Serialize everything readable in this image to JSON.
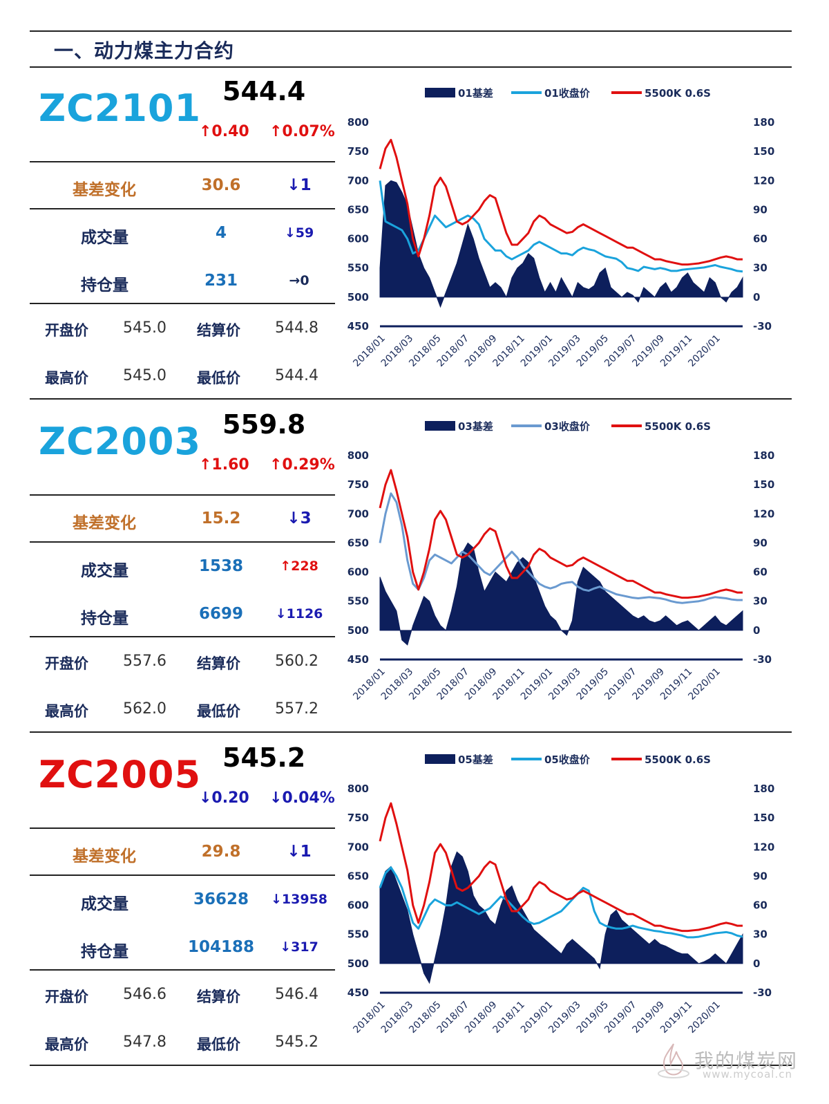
{
  "section_title": "一、动力煤主力合约",
  "colors": {
    "up": "#e01010",
    "down": "#1a1ab0",
    "brand_blue": "#1aa3dc",
    "brand_red": "#e01010",
    "navy": "#0d1f5c",
    "orange": "#c0702a",
    "value_blue": "#1a6fb8",
    "red_line": "#e01010"
  },
  "panels": [
    {
      "code": "ZC2101",
      "code_color": "#1aa3dc",
      "price": "544.4",
      "change": "↑0.40",
      "change_pct": "↑0.07%",
      "change_dir": "up",
      "basis_label": "基差变化",
      "basis_value": "30.6",
      "basis_delta": "↓1",
      "volume_label": "成交量",
      "volume_value": "4",
      "volume_delta": "↓59",
      "volume_dir": "down",
      "oi_label": "持仓量",
      "oi_value": "231",
      "oi_delta": "→0",
      "oi_dir": "flat",
      "open_label": "开盘价",
      "open_value": "545.0",
      "settle_label": "结算价",
      "settle_value": "544.8",
      "high_label": "最高价",
      "high_value": "545.0",
      "low_label": "最低价",
      "low_value": "544.4"
    },
    {
      "code": "ZC2003",
      "code_color": "#1aa3dc",
      "price": "559.8",
      "change": "↑1.60",
      "change_pct": "↑0.29%",
      "change_dir": "up",
      "basis_label": "基差变化",
      "basis_value": "15.2",
      "basis_delta": "↓3",
      "volume_label": "成交量",
      "volume_value": "1538",
      "volume_delta": "↑228",
      "volume_dir": "up",
      "oi_label": "持仓量",
      "oi_value": "6699",
      "oi_delta": "↓1126",
      "oi_dir": "down",
      "open_label": "开盘价",
      "open_value": "557.6",
      "settle_label": "结算价",
      "settle_value": "560.2",
      "high_label": "最高价",
      "high_value": "562.0",
      "low_label": "最低价",
      "low_value": "557.2"
    },
    {
      "code": "ZC2005",
      "code_color": "#e01010",
      "price": "545.2",
      "change": "↓0.20",
      "change_pct": "↓0.04%",
      "change_dir": "down",
      "basis_label": "基差变化",
      "basis_value": "29.8",
      "basis_delta": "↓1",
      "volume_label": "成交量",
      "volume_value": "36628",
      "volume_delta": "↓13958",
      "volume_dir": "down",
      "oi_label": "持仓量",
      "oi_value": "104188",
      "oi_delta": "↓317",
      "oi_dir": "down",
      "open_label": "开盘价",
      "open_value": "546.6",
      "settle_label": "结算价",
      "settle_value": "546.4",
      "high_label": "最高价",
      "high_value": "547.8",
      "low_label": "最低价",
      "low_value": "545.2"
    }
  ],
  "chart_data": [
    {
      "type": "line",
      "legend": [
        "01基差",
        "01收盘价",
        "5500K 0.6S"
      ],
      "legend_position": "top",
      "x_ticks": [
        "2018/01",
        "2018/03",
        "2018/05",
        "2018/07",
        "2018/09",
        "2018/11",
        "2019/01",
        "2019/03",
        "2019/05",
        "2019/07",
        "2019/09",
        "2019/11",
        "2020/01"
      ],
      "ylim_left": [
        450,
        800
      ],
      "yticks_left": [
        "800",
        "750",
        "700",
        "650",
        "600",
        "550",
        "500",
        "450"
      ],
      "ylim_right": [
        -30,
        180
      ],
      "yticks_right": [
        "180",
        "150",
        "120",
        "90",
        "60",
        "30",
        "0",
        "-30"
      ],
      "grid": false,
      "series": [
        {
          "name": "01基差",
          "axis": "right",
          "kind": "area",
          "color": "#0d1f5c",
          "values": [
            30,
            115,
            120,
            118,
            108,
            95,
            70,
            45,
            30,
            20,
            5,
            -10,
            5,
            20,
            35,
            55,
            75,
            60,
            40,
            25,
            10,
            15,
            10,
            0,
            20,
            30,
            35,
            45,
            40,
            20,
            5,
            15,
            5,
            20,
            10,
            0,
            15,
            10,
            8,
            12,
            25,
            30,
            10,
            5,
            0,
            5,
            2,
            -5,
            10,
            5,
            0,
            10,
            15,
            5,
            10,
            20,
            25,
            15,
            10,
            5,
            20,
            15,
            0,
            -5,
            5,
            10,
            20
          ]
        },
        {
          "name": "01收盘价",
          "axis": "left",
          "kind": "line",
          "color": "#1aa3dc",
          "values": [
            700,
            630,
            625,
            620,
            615,
            600,
            575,
            580,
            600,
            620,
            640,
            630,
            620,
            625,
            630,
            635,
            640,
            635,
            625,
            600,
            590,
            580,
            580,
            570,
            565,
            570,
            575,
            580,
            590,
            595,
            590,
            585,
            580,
            575,
            575,
            572,
            580,
            585,
            582,
            580,
            575,
            570,
            568,
            566,
            560,
            550,
            548,
            545,
            552,
            550,
            548,
            550,
            548,
            545,
            545,
            547,
            548,
            549,
            550,
            551,
            553,
            555,
            552,
            550,
            548,
            545,
            544
          ]
        },
        {
          "name": "5500K 0.6S",
          "axis": "left",
          "kind": "line",
          "color": "#e01010",
          "values": [
            720,
            755,
            770,
            740,
            700,
            660,
            600,
            570,
            600,
            640,
            690,
            705,
            690,
            660,
            630,
            625,
            630,
            640,
            650,
            665,
            675,
            670,
            640,
            610,
            590,
            590,
            600,
            610,
            630,
            640,
            635,
            625,
            620,
            615,
            610,
            612,
            620,
            625,
            620,
            615,
            610,
            605,
            600,
            595,
            590,
            585,
            585,
            580,
            575,
            570,
            565,
            565,
            562,
            560,
            558,
            556,
            556,
            557,
            558,
            560,
            562,
            565,
            568,
            570,
            568,
            565,
            565
          ]
        }
      ]
    },
    {
      "type": "line",
      "legend": [
        "03基差",
        "03收盘价",
        "5500K 0.6S"
      ],
      "legend_position": "top",
      "x_ticks": [
        "2018/01",
        "2018/03",
        "2018/05",
        "2018/07",
        "2018/09",
        "2018/11",
        "2019/01",
        "2019/03",
        "2019/05",
        "2019/07",
        "2019/09",
        "2019/11",
        "2020/01"
      ],
      "ylim_left": [
        450,
        800
      ],
      "yticks_left": [
        "800",
        "750",
        "700",
        "650",
        "600",
        "550",
        "500",
        "450"
      ],
      "ylim_right": [
        -30,
        180
      ],
      "yticks_right": [
        "180",
        "150",
        "120",
        "90",
        "60",
        "30",
        "0",
        "-30"
      ],
      "grid": false,
      "series": [
        {
          "name": "03基差",
          "axis": "right",
          "kind": "area",
          "color": "#0d1f5c",
          "values": [
            55,
            40,
            30,
            20,
            -10,
            -15,
            5,
            20,
            35,
            30,
            15,
            5,
            0,
            20,
            45,
            80,
            90,
            85,
            60,
            40,
            50,
            60,
            55,
            50,
            60,
            70,
            75,
            70,
            55,
            40,
            25,
            15,
            10,
            0,
            -5,
            10,
            50,
            65,
            60,
            55,
            50,
            40,
            35,
            30,
            25,
            20,
            15,
            12,
            15,
            10,
            8,
            10,
            15,
            10,
            5,
            8,
            10,
            5,
            0,
            5,
            10,
            15,
            8,
            5,
            10,
            15,
            20
          ]
        },
        {
          "name": "03收盘价",
          "axis": "left",
          "kind": "line",
          "color": "#6a9ad0",
          "values": [
            650,
            700,
            735,
            720,
            680,
            620,
            580,
            570,
            590,
            620,
            630,
            625,
            620,
            615,
            625,
            635,
            630,
            620,
            610,
            600,
            595,
            605,
            615,
            625,
            635,
            625,
            610,
            600,
            590,
            580,
            575,
            572,
            575,
            580,
            582,
            583,
            575,
            570,
            568,
            572,
            575,
            570,
            566,
            562,
            560,
            558,
            556,
            555,
            556,
            557,
            556,
            555,
            553,
            550,
            548,
            547,
            548,
            549,
            550,
            552,
            555,
            557,
            556,
            555,
            553,
            552,
            552
          ]
        },
        {
          "name": "5500K 0.6S",
          "axis": "left",
          "kind": "line",
          "color": "#e01010",
          "values": [
            710,
            750,
            775,
            740,
            700,
            660,
            600,
            570,
            600,
            640,
            690,
            705,
            690,
            660,
            630,
            625,
            630,
            640,
            650,
            665,
            675,
            670,
            640,
            610,
            590,
            590,
            600,
            610,
            630,
            640,
            635,
            625,
            620,
            615,
            610,
            612,
            620,
            625,
            620,
            615,
            610,
            605,
            600,
            595,
            590,
            585,
            585,
            580,
            575,
            570,
            565,
            565,
            562,
            560,
            558,
            556,
            556,
            557,
            558,
            560,
            562,
            565,
            568,
            570,
            568,
            565,
            565
          ]
        }
      ]
    },
    {
      "type": "line",
      "legend": [
        "05基差",
        "05收盘价",
        "5500K 0.6S"
      ],
      "legend_position": "top",
      "x_ticks": [
        "2018/01",
        "2018/03",
        "2018/05",
        "2018/07",
        "2018/09",
        "2018/11",
        "2019/01",
        "2019/03",
        "2019/05",
        "2019/07",
        "2019/09",
        "2019/11",
        "2020/01"
      ],
      "ylim_left": [
        450,
        800
      ],
      "yticks_left": [
        "800",
        "750",
        "700",
        "650",
        "600",
        "550",
        "500",
        "450"
      ],
      "ylim_right": [
        -30,
        180
      ],
      "yticks_right": [
        "180",
        "150",
        "120",
        "90",
        "60",
        "30",
        "0",
        "-30"
      ],
      "grid": false,
      "series": [
        {
          "name": "05基差",
          "axis": "right",
          "kind": "area",
          "color": "#0d1f5c",
          "values": [
            80,
            95,
            100,
            85,
            70,
            55,
            30,
            10,
            -10,
            -20,
            5,
            30,
            60,
            100,
            115,
            110,
            95,
            70,
            60,
            55,
            45,
            40,
            60,
            75,
            80,
            65,
            55,
            45,
            35,
            30,
            25,
            20,
            15,
            10,
            20,
            25,
            20,
            15,
            10,
            5,
            -5,
            30,
            50,
            55,
            45,
            40,
            35,
            30,
            25,
            20,
            25,
            20,
            18,
            15,
            12,
            10,
            10,
            5,
            0,
            2,
            5,
            10,
            5,
            0,
            10,
            20,
            30
          ]
        },
        {
          "name": "05收盘价",
          "axis": "left",
          "kind": "line",
          "color": "#1aa3dc",
          "values": [
            630,
            655,
            665,
            650,
            630,
            600,
            570,
            560,
            580,
            600,
            610,
            605,
            600,
            600,
            605,
            600,
            595,
            590,
            585,
            590,
            595,
            605,
            615,
            610,
            600,
            590,
            580,
            572,
            568,
            570,
            575,
            580,
            585,
            590,
            600,
            610,
            620,
            630,
            625,
            590,
            570,
            565,
            562,
            560,
            560,
            562,
            565,
            562,
            560,
            558,
            556,
            555,
            553,
            552,
            550,
            548,
            545,
            545,
            546,
            548,
            550,
            552,
            553,
            554,
            552,
            548,
            546
          ]
        },
        {
          "name": "5500K 0.6S",
          "axis": "left",
          "kind": "line",
          "color": "#e01010",
          "values": [
            710,
            750,
            775,
            740,
            700,
            660,
            600,
            570,
            600,
            640,
            690,
            705,
            690,
            660,
            630,
            625,
            630,
            640,
            650,
            665,
            675,
            670,
            640,
            610,
            590,
            590,
            600,
            610,
            630,
            640,
            635,
            625,
            620,
            615,
            610,
            612,
            620,
            625,
            620,
            615,
            610,
            605,
            600,
            595,
            590,
            585,
            585,
            580,
            575,
            570,
            565,
            565,
            562,
            560,
            558,
            556,
            556,
            557,
            558,
            560,
            562,
            565,
            568,
            570,
            568,
            565,
            565
          ]
        }
      ]
    }
  ],
  "watermark": {
    "text": "我的煤炭网",
    "url": "www.mycoal.cn"
  }
}
